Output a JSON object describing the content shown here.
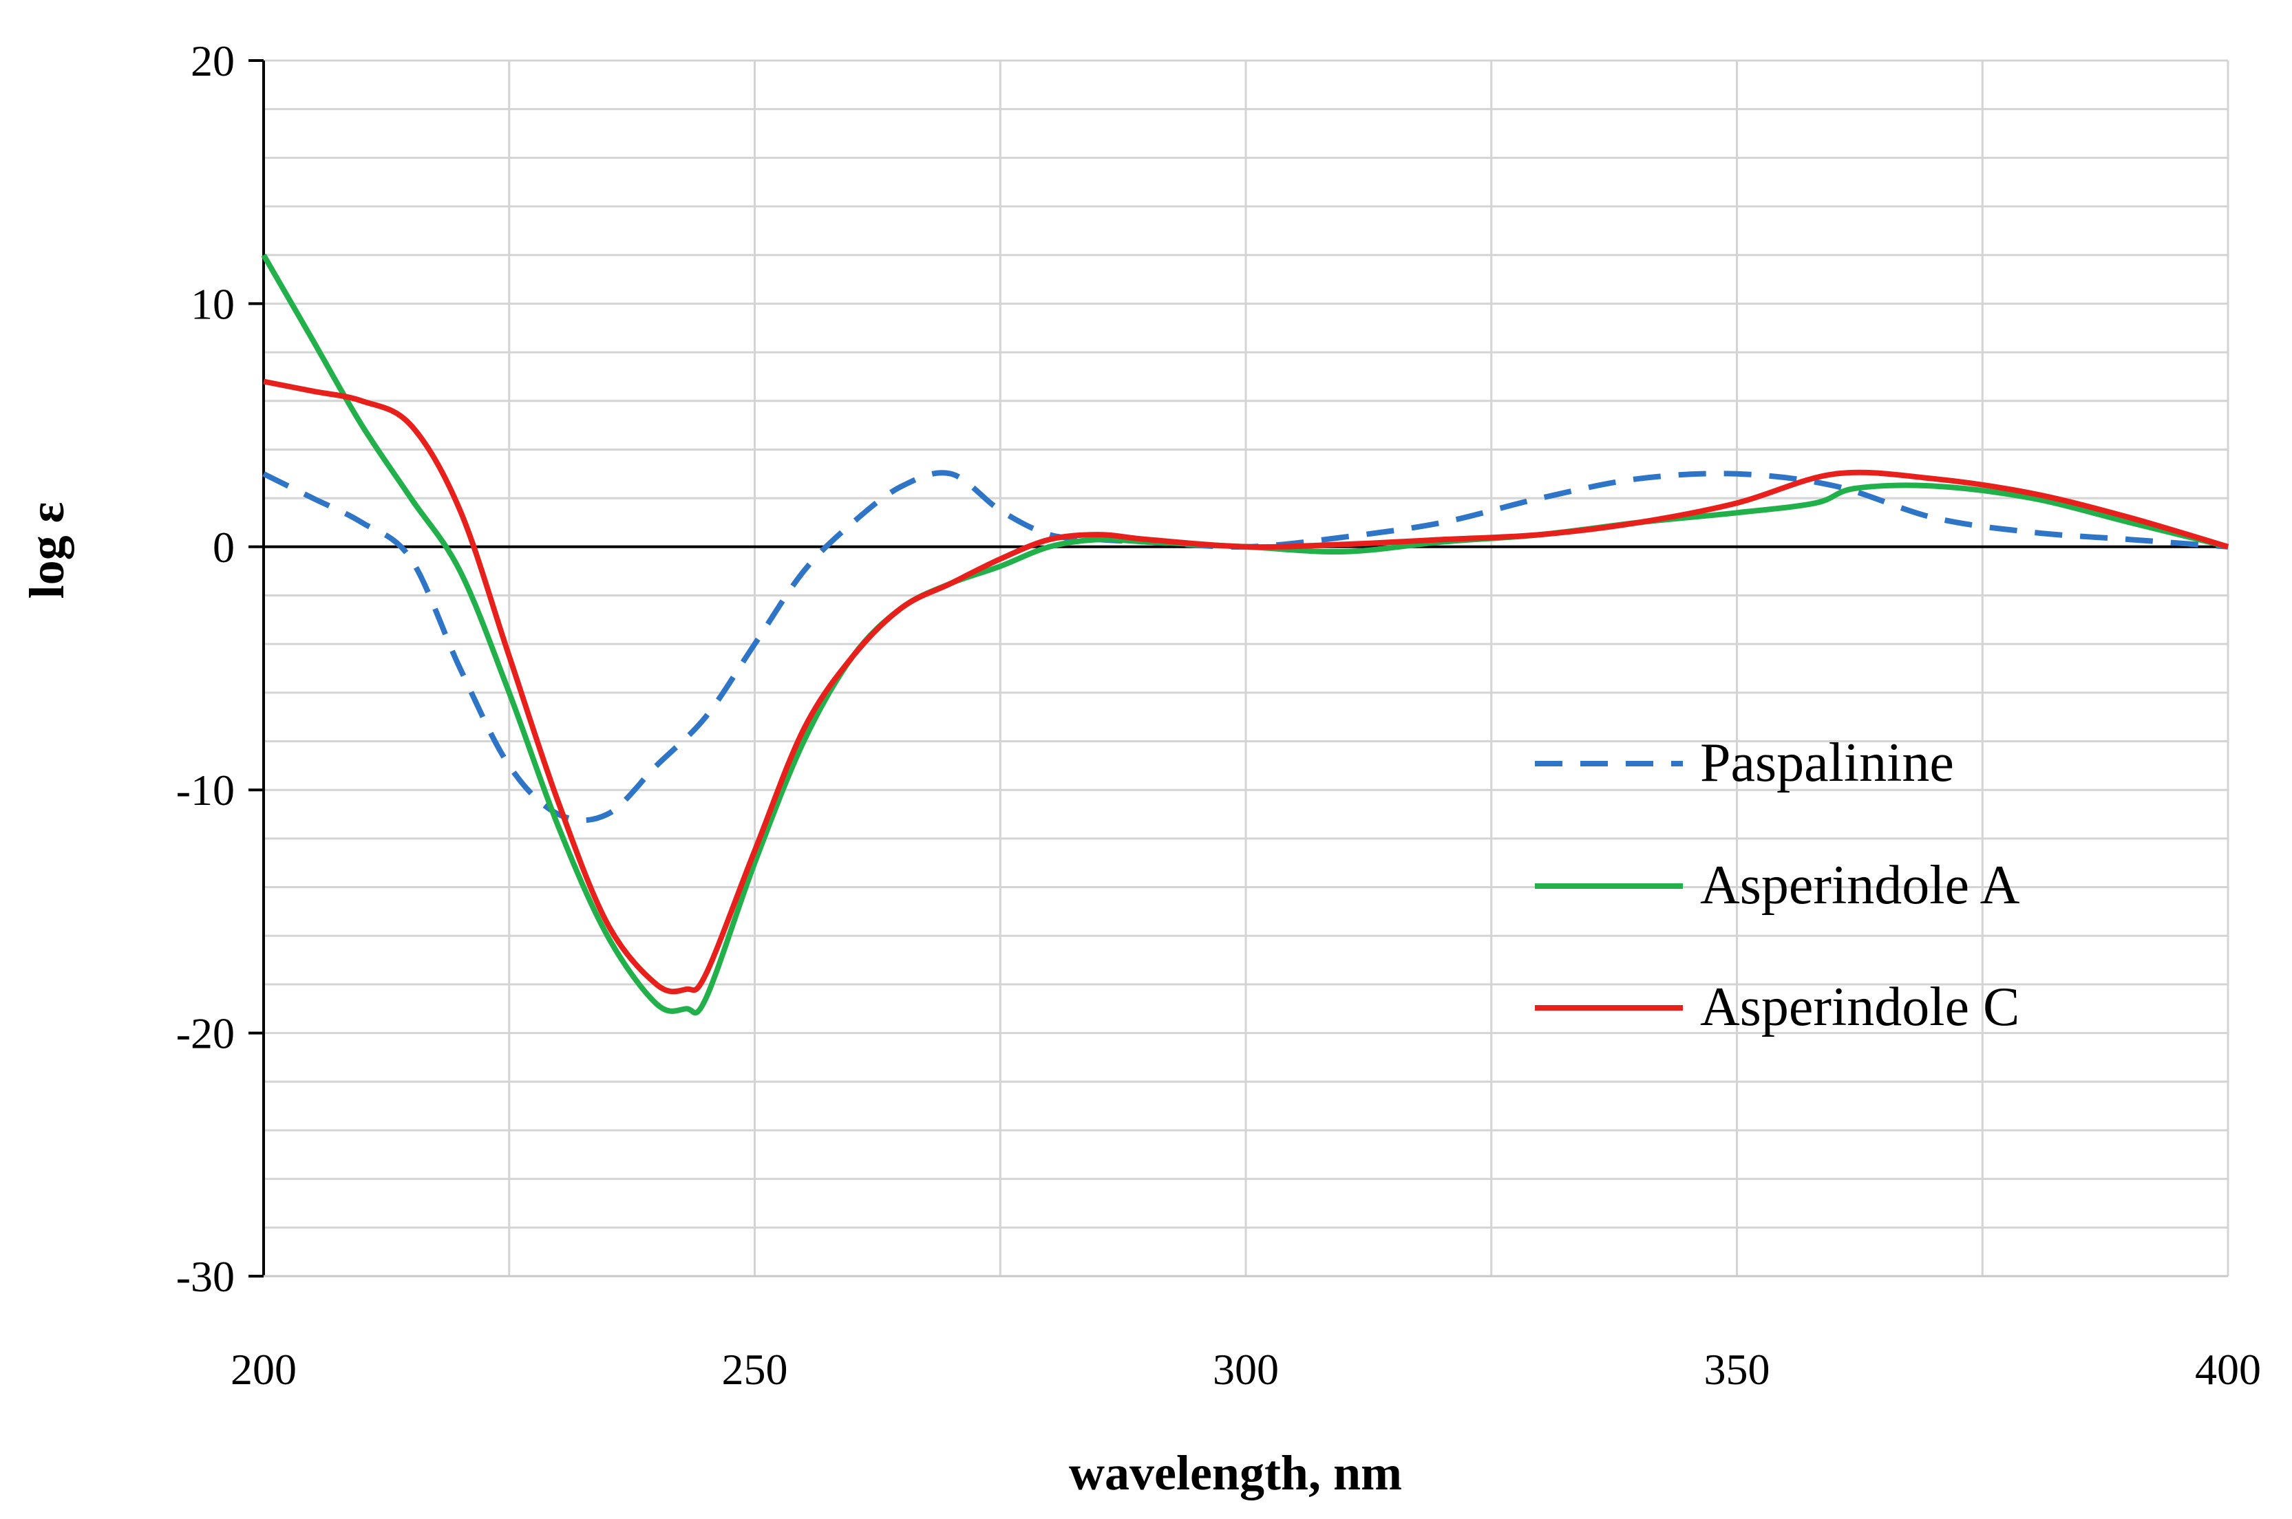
{
  "chart_data": {
    "type": "line",
    "title": "",
    "xlabel": "wavelength, nm",
    "ylabel": "log ε",
    "xlim": [
      200,
      400
    ],
    "ylim": [
      -30,
      20
    ],
    "x_ticks": [
      200,
      250,
      300,
      350,
      400
    ],
    "y_ticks": [
      20,
      10,
      0,
      -10,
      -20,
      -30
    ],
    "x_tick_labels": [
      "200",
      "250",
      "300",
      "350",
      "400"
    ],
    "y_tick_labels": [
      "20",
      "10",
      "0",
      "-10",
      "-20",
      "-30"
    ],
    "x_grid_step": 25,
    "y_grid_step": 2,
    "grid": true,
    "legend_position": "right",
    "series": [
      {
        "name": "Paspalinine",
        "color": "#2E75C8",
        "style": "dashed",
        "x": [
          200,
          205,
          210,
          215,
          220,
          225,
          230,
          235,
          240,
          245,
          250,
          255,
          260,
          265,
          270,
          275,
          280,
          285,
          290,
          300,
          310,
          320,
          330,
          340,
          350,
          360,
          370,
          380,
          390,
          400
        ],
        "y": [
          3,
          2,
          1,
          -0.5,
          -5,
          -9,
          -11,
          -11,
          -9,
          -7,
          -4,
          -1,
          1,
          2.5,
          3,
          1.5,
          0.5,
          0.3,
          0.2,
          0,
          0.4,
          1,
          2,
          2.8,
          3,
          2.5,
          1.2,
          0.6,
          0.3,
          0
        ]
      },
      {
        "name": "Asperindole A",
        "color": "#22B04B",
        "style": "solid",
        "x": [
          200,
          205,
          210,
          215,
          220,
          225,
          230,
          235,
          240,
          243,
          245,
          250,
          255,
          260,
          265,
          270,
          275,
          280,
          285,
          290,
          300,
          310,
          320,
          330,
          340,
          350,
          358,
          362,
          370,
          380,
          390,
          400
        ],
        "y": [
          12,
          8.5,
          5,
          2,
          -1,
          -6,
          -11.5,
          -16,
          -18.8,
          -19,
          -18.6,
          -13,
          -8,
          -4.5,
          -2.5,
          -1.5,
          -0.8,
          0,
          0.3,
          0.2,
          0,
          -0.2,
          0.2,
          0.5,
          1,
          1.4,
          1.8,
          2.4,
          2.5,
          2,
          1,
          0
        ]
      },
      {
        "name": "Asperindole C",
        "color": "#E8201C",
        "style": "solid",
        "x": [
          200,
          205,
          210,
          215,
          220,
          225,
          230,
          235,
          240,
          243,
          245,
          250,
          255,
          260,
          265,
          270,
          275,
          280,
          285,
          290,
          300,
          310,
          320,
          330,
          340,
          350,
          360,
          370,
          380,
          390,
          400
        ],
        "y": [
          6.8,
          6.4,
          6,
          5,
          1.5,
          -4.5,
          -10.5,
          -15.5,
          -18,
          -18.2,
          -17.6,
          -12.5,
          -7.5,
          -4.5,
          -2.5,
          -1.5,
          -0.5,
          0.3,
          0.5,
          0.3,
          0,
          0.1,
          0.3,
          0.5,
          1,
          1.8,
          3,
          2.8,
          2.2,
          1.2,
          0
        ]
      }
    ]
  }
}
